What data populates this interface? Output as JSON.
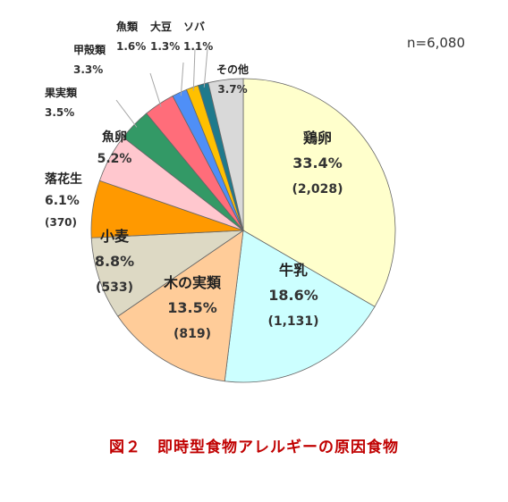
{
  "caption": "図２　即時型食物アレルギーの原因食物",
  "chart_data": {
    "type": "pie",
    "n_label": "n=6,080",
    "start_angle_deg": 0,
    "direction": "clockwise",
    "slices": [
      {
        "name": "鶏卵",
        "pct_label": "33.4%",
        "value": 33.4,
        "count_label": "(2,028)",
        "color": "#ffffcc"
      },
      {
        "name": "牛乳",
        "pct_label": "18.6%",
        "value": 18.6,
        "count_label": "(1,131)",
        "color": "#ccffff"
      },
      {
        "name": "木の実類",
        "pct_label": "13.5%",
        "value": 13.5,
        "count_label": "(819)",
        "color": "#ffcc99"
      },
      {
        "name": "小麦",
        "pct_label": "8.8%",
        "value": 8.8,
        "count_label": "(533)",
        "color": "#ddd9c4"
      },
      {
        "name": "落花生",
        "pct_label": "6.1%",
        "value": 6.1,
        "count_label": "(370)",
        "color": "#ff9900"
      },
      {
        "name": "魚卵",
        "pct_label": "5.2%",
        "value": 5.2,
        "color": "#ffc7ce"
      },
      {
        "name": "果実類",
        "pct_label": "3.5%",
        "value": 3.5,
        "color": "#339966"
      },
      {
        "name": "甲殻類",
        "pct_label": "3.3%",
        "value": 3.3,
        "color": "#ff6d7a"
      },
      {
        "name": "魚類",
        "pct_label": "1.6%",
        "value": 1.6,
        "color": "#4f8ff7"
      },
      {
        "name": "大豆",
        "pct_label": "1.3%",
        "value": 1.3,
        "color": "#ffc000"
      },
      {
        "name": "ソバ",
        "pct_label": "1.1%",
        "value": 1.1,
        "color": "#1f7a8c"
      },
      {
        "name": "その他",
        "pct_label": "3.7%",
        "value": 3.7,
        "color": "#d9d9d9"
      }
    ]
  }
}
